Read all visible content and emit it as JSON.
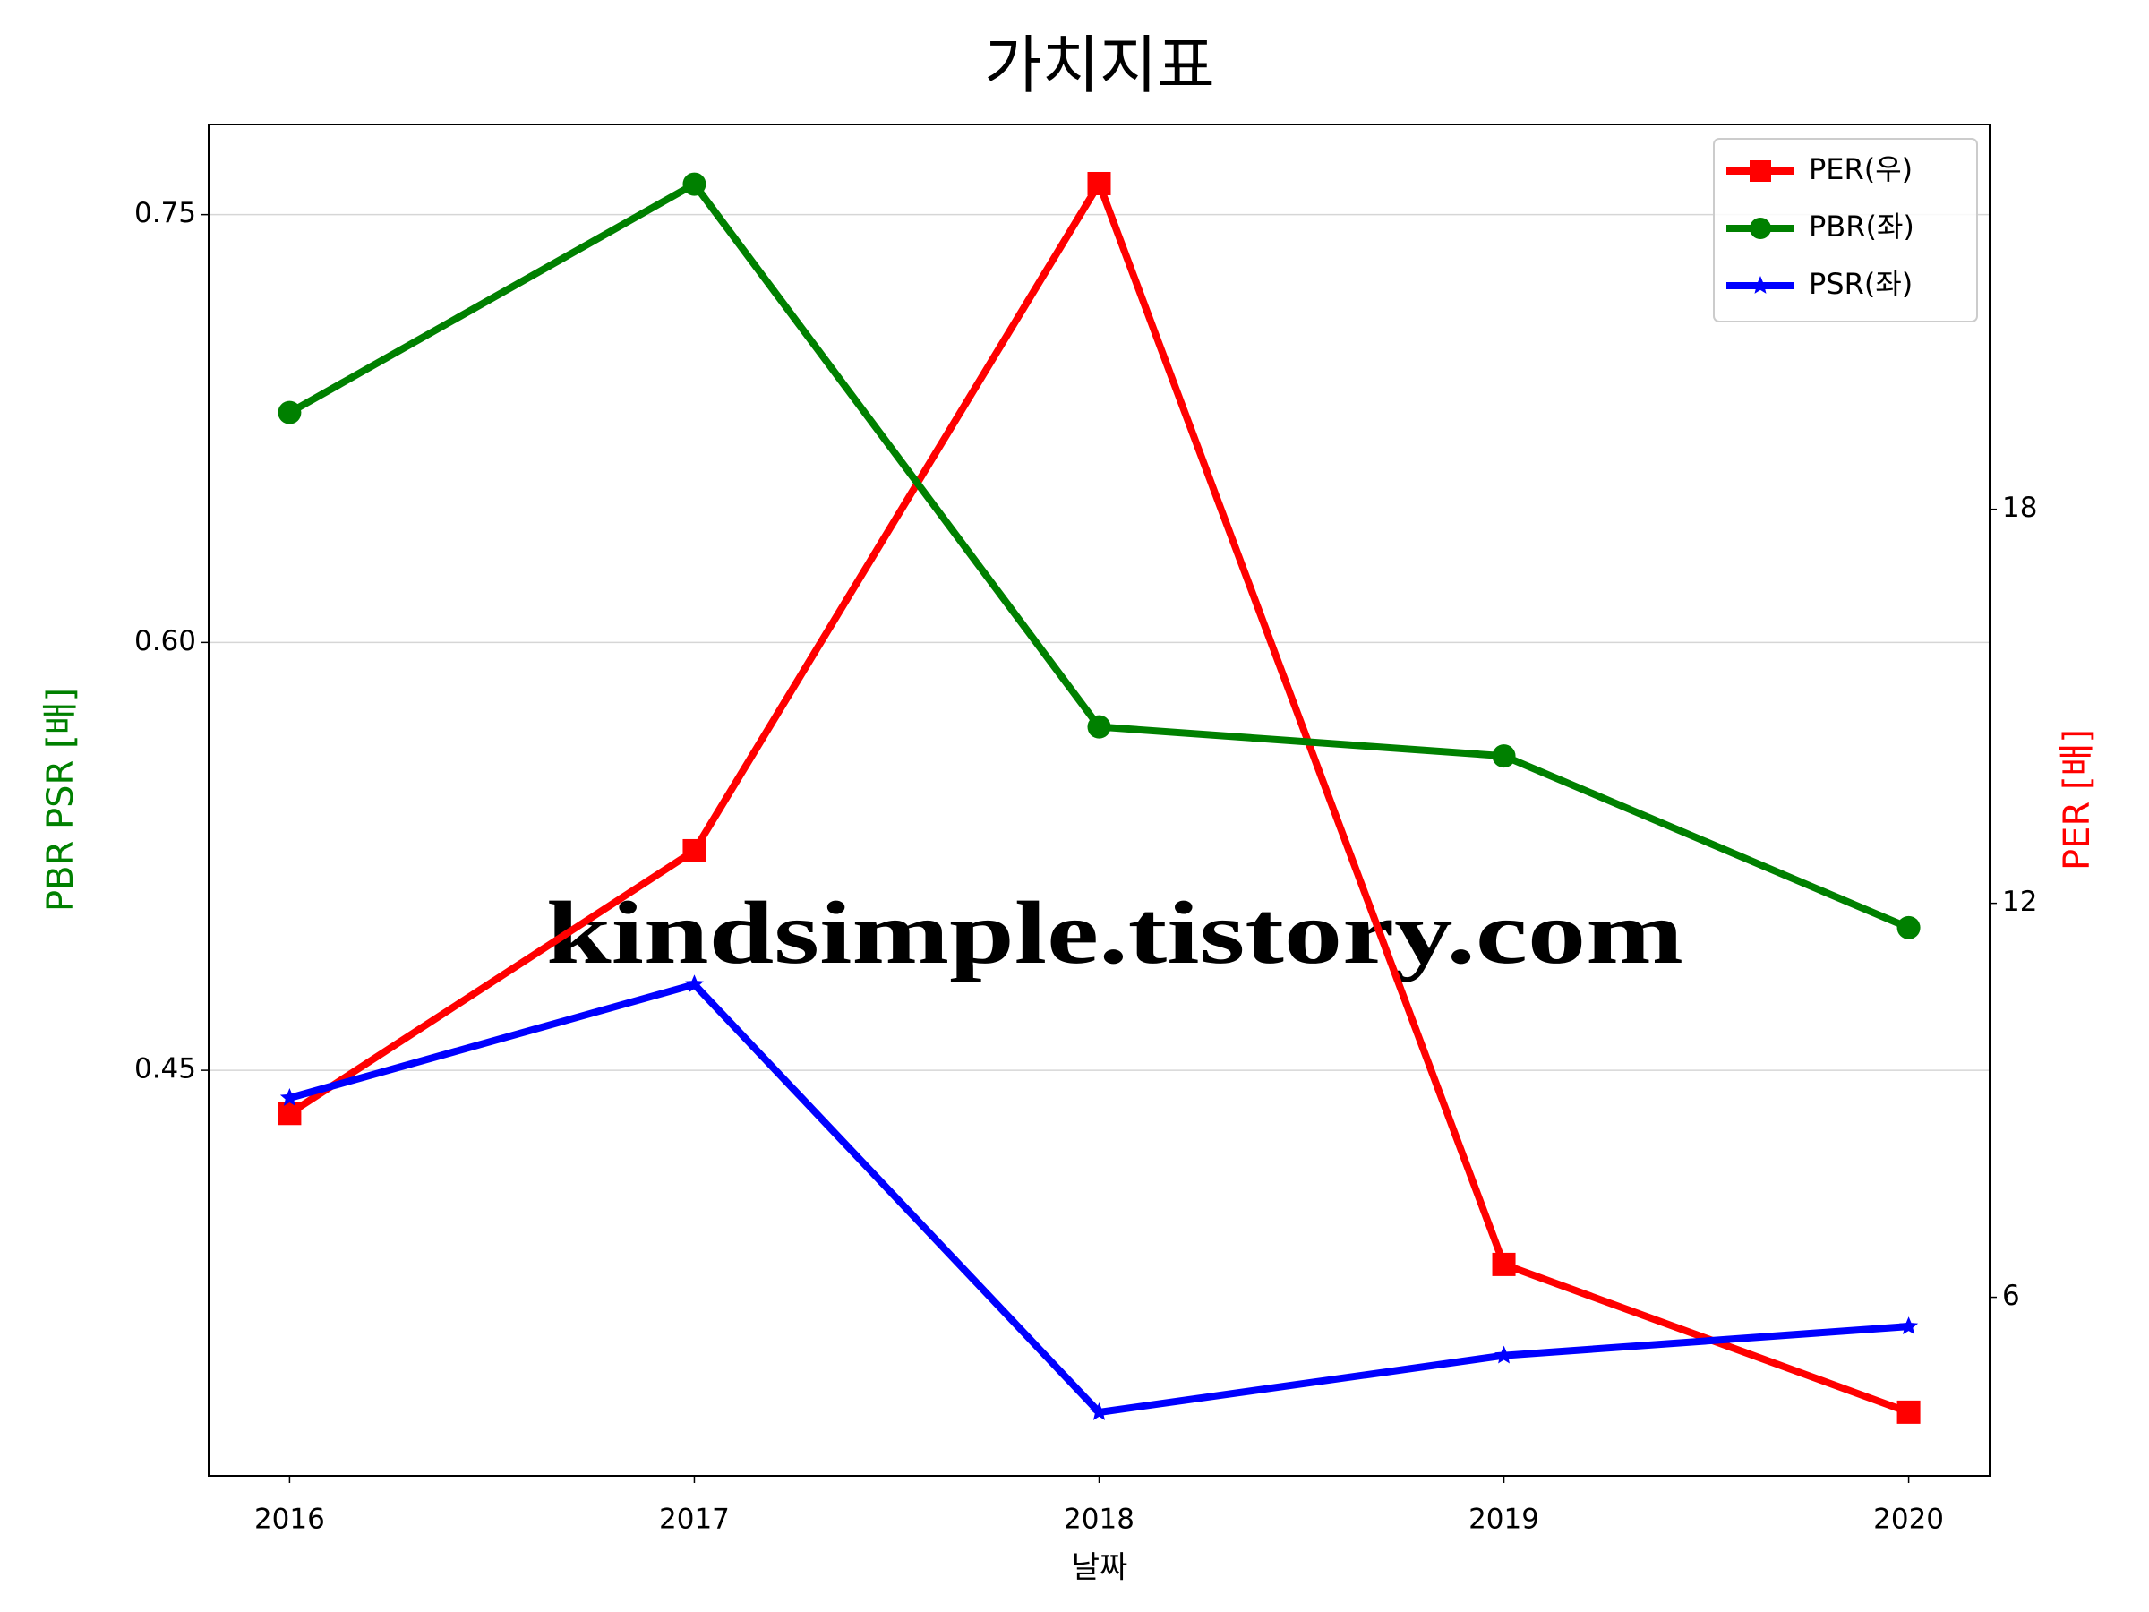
{
  "chart_data": {
    "type": "line",
    "title": "가치지표",
    "xlabel": "날짜",
    "ylabel": "PBR PSR [배]",
    "y2label": "PER [배]",
    "ylabel_color": "green",
    "y2label_color": "red",
    "x": [
      2016,
      2017,
      2018,
      2019,
      2020
    ],
    "xlim": [
      2015.8,
      2020.2
    ],
    "xticks": [
      2016,
      2017,
      2018,
      2019,
      2020
    ],
    "ylim": [
      0.3078,
      0.7816
    ],
    "yticks": [
      {
        "value": 0.45,
        "label": "0.45"
      },
      {
        "value": 0.6,
        "label": "0.60"
      },
      {
        "value": 0.75,
        "label": "0.75"
      }
    ],
    "y2lim": [
      3.28,
      23.86
    ],
    "y2ticks": [
      6,
      12,
      18
    ],
    "grid": true,
    "legend": "upper right",
    "series": [
      {
        "name": "PER(우)",
        "color": "red",
        "marker": "square",
        "axis": "y2",
        "values": [
          8.8,
          12.8,
          22.96,
          6.5,
          4.25
        ]
      },
      {
        "name": "PBR(좌)",
        "color": "green",
        "marker": "circle",
        "values": [
          0.6806,
          0.7607,
          0.5704,
          0.5602,
          0.5
        ]
      },
      {
        "name": "PSR(좌)",
        "color": "blue",
        "marker": "star",
        "values": [
          0.4403,
          0.4801,
          0.3301,
          0.35,
          0.3602
        ]
      }
    ],
    "annotation": "kindsimple.tistory.com"
  }
}
